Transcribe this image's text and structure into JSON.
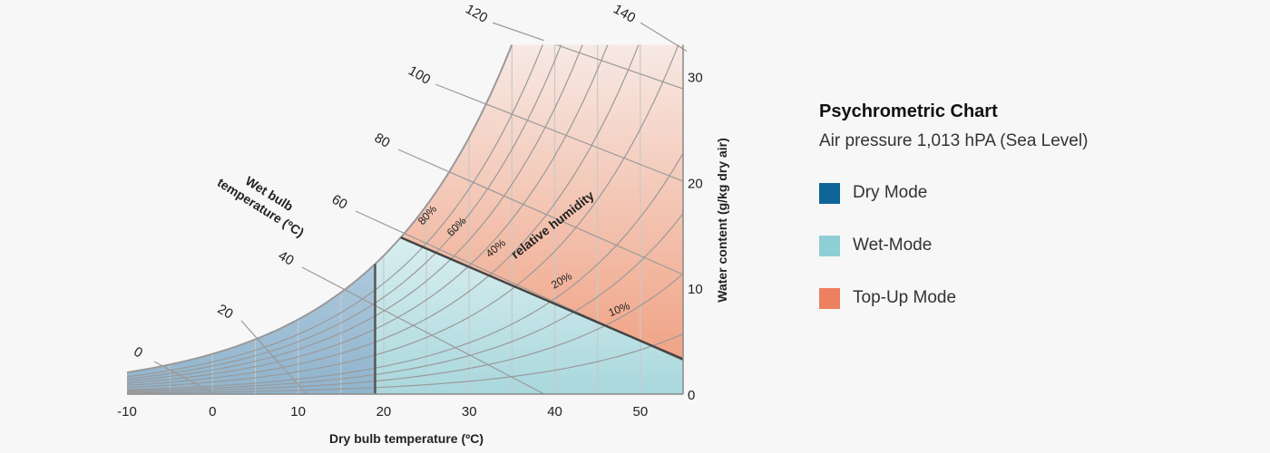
{
  "chart_data": {
    "type": "psychrometric",
    "title": "Psychrometric Chart",
    "subtitle": "Air pressure 1,013 hPA (Sea Level)",
    "xlabel": "Dry bulb temperature (ºC)",
    "ylabel": "Water content (g/kg dry air)",
    "x_ticks": [
      "-10",
      "0",
      "10",
      "20",
      "30",
      "40",
      "50"
    ],
    "y_ticks": [
      "0",
      "10",
      "20",
      "30"
    ],
    "xlim": [
      -10,
      55
    ],
    "ylim": [
      0,
      33
    ],
    "wet_bulb_title": "Wet bulb temperature (ºC)",
    "wet_bulb_ticks": [
      "0",
      "20",
      "40",
      "60",
      "80",
      "100",
      "120",
      "140"
    ],
    "rh_title": "relative humidity",
    "rh_curves": [
      "80%",
      "60%",
      "40%",
      "20%",
      "10%"
    ],
    "mode_boundaries": {
      "dry_mode_max_temp_c": 19,
      "saturation_corner_temp_c": 22
    },
    "legend": [
      {
        "name": "Dry Mode",
        "color": "#0f6597"
      },
      {
        "name": "Wet-Mode",
        "color": "#8ecfd6"
      },
      {
        "name": "Top-Up Mode",
        "color": "#ec8060"
      }
    ]
  }
}
